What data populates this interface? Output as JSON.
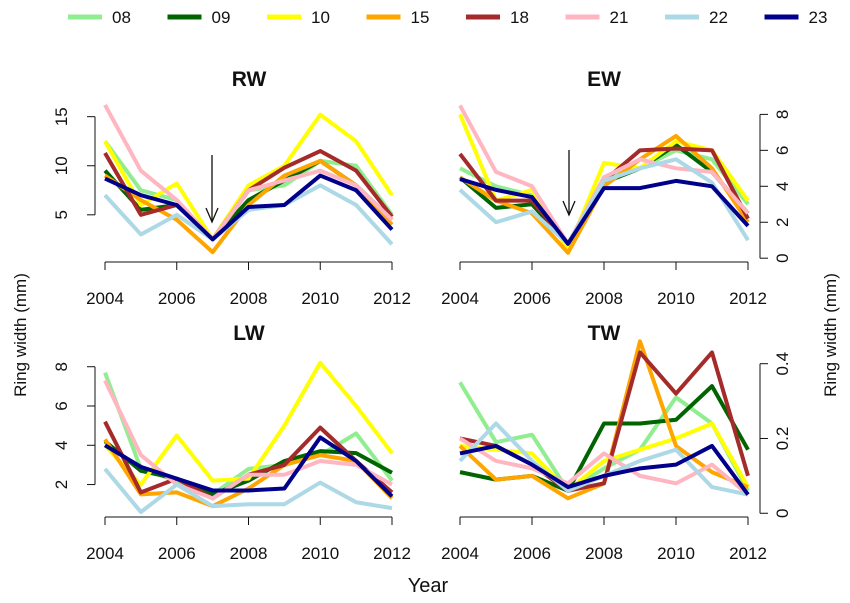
{
  "legend": [
    {
      "name": "08",
      "color": "#90ee90"
    },
    {
      "name": "09",
      "color": "#006400"
    },
    {
      "name": "10",
      "color": "#ffff00"
    },
    {
      "name": "15",
      "color": "#ffa500"
    },
    {
      "name": "18",
      "color": "#a52a2a"
    },
    {
      "name": "21",
      "color": "#ffb6c1"
    },
    {
      "name": "22",
      "color": "#add8e6"
    },
    {
      "name": "23",
      "color": "#00008b"
    }
  ],
  "chart_data": [
    {
      "type": "line",
      "title": "RW",
      "x": [
        2004,
        2005,
        2006,
        2007,
        2008,
        2009,
        2010,
        2011,
        2012
      ],
      "xlim": [
        2004,
        2012
      ],
      "xticks": [
        2004,
        2006,
        2008,
        2010,
        2012
      ],
      "ylim": [
        0.6,
        16.7
      ],
      "yticks": [
        5,
        10,
        15
      ],
      "series": [
        {
          "values": [
            12.5,
            7.5,
            6.5,
            2.5,
            7.5,
            8,
            10.5,
            10,
            5
          ]
        },
        {
          "values": [
            9.5,
            5.5,
            6,
            2.5,
            6.5,
            8.5,
            10.5,
            8,
            4.5
          ]
        },
        {
          "values": [
            12.5,
            6,
            8.2,
            2.5,
            8,
            10,
            15.2,
            12.5,
            7
          ]
        },
        {
          "values": [
            9,
            6.5,
            4.5,
            1.2,
            6,
            9,
            10.5,
            8,
            4
          ]
        },
        {
          "values": [
            11.3,
            5,
            6,
            2.5,
            7.5,
            9.8,
            11.5,
            9.5,
            4.8
          ]
        },
        {
          "values": [
            16.2,
            9.5,
            6.5,
            2.5,
            7.5,
            8.5,
            9.5,
            8,
            4.5
          ]
        },
        {
          "values": [
            7,
            3,
            5,
            2.5,
            5.5,
            6,
            8,
            6,
            2
          ]
        },
        {
          "values": [
            8.7,
            7,
            6,
            2.5,
            5.8,
            6,
            9,
            7.5,
            3.5
          ]
        }
      ]
    },
    {
      "type": "line",
      "title": "EW",
      "x": [
        2004,
        2005,
        2006,
        2007,
        2008,
        2009,
        2010,
        2011,
        2012
      ],
      "xlim": [
        2004,
        2012
      ],
      "xticks": [
        2004,
        2006,
        2008,
        2010,
        2012
      ],
      "ylim": [
        -0.1,
        8.8
      ],
      "yticks": [
        0,
        2,
        4,
        6,
        8
      ],
      "series": [
        {
          "values": [
            5,
            4,
            3.5,
            0.8,
            4.5,
            5,
            6,
            5.5,
            3
          ]
        },
        {
          "values": [
            4.5,
            2.8,
            3,
            0.8,
            4.2,
            5,
            6.3,
            4.8,
            2.5
          ]
        },
        {
          "values": [
            8,
            3.2,
            3.8,
            0.5,
            5.3,
            5,
            6.5,
            6,
            3.2
          ]
        },
        {
          "values": [
            4.5,
            3.2,
            2.5,
            0.3,
            4,
            5.5,
            6.8,
            5,
            2
          ]
        },
        {
          "values": [
            5.8,
            3.2,
            3.2,
            0.8,
            4.3,
            6,
            6.1,
            6,
            2.2
          ]
        },
        {
          "values": [
            8.5,
            4.8,
            4,
            0.8,
            4.5,
            5.5,
            5,
            4.8,
            2.5
          ]
        },
        {
          "values": [
            3.8,
            2,
            2.6,
            0.8,
            4.3,
            5,
            5.5,
            4.2,
            1
          ]
        },
        {
          "values": [
            4.4,
            3.8,
            3.4,
            0.8,
            3.9,
            3.9,
            4.3,
            4,
            1.8
          ]
        }
      ]
    },
    {
      "type": "line",
      "title": "LW",
      "ylabel": "Ring width (mm)",
      "xlabel": "Year",
      "x": [
        2004,
        2005,
        2006,
        2007,
        2008,
        2009,
        2010,
        2011,
        2012
      ],
      "xlim": [
        2004,
        2012
      ],
      "xticks": [
        2004,
        2006,
        2008,
        2010,
        2012
      ],
      "ylim": [
        0.45,
        8.75
      ],
      "yticks": [
        2,
        4,
        6,
        8
      ],
      "series": [
        {
          "values": [
            7.7,
            2.8,
            2.2,
            1.5,
            2.8,
            3,
            3.5,
            4.6,
            2.2
          ]
        },
        {
          "values": [
            4.2,
            2.7,
            2.3,
            1.5,
            2.2,
            3.2,
            3.7,
            3.6,
            2.6
          ]
        },
        {
          "values": [
            4,
            2,
            4.5,
            2.2,
            2.3,
            5,
            8.2,
            6,
            3.6
          ]
        },
        {
          "values": [
            4.3,
            1.5,
            1.6,
            0.9,
            1.8,
            3,
            3.5,
            3.2,
            1.3
          ]
        },
        {
          "values": [
            5.2,
            1.6,
            2.3,
            1.3,
            2.5,
            3,
            4.9,
            3.2,
            1.6
          ]
        },
        {
          "values": [
            7.3,
            3.5,
            2,
            1.3,
            2.5,
            2.5,
            3.2,
            3,
            2
          ]
        },
        {
          "values": [
            2.8,
            0.6,
            2,
            0.9,
            1,
            1,
            2.1,
            1.1,
            0.8
          ]
        },
        {
          "values": [
            4,
            2.9,
            2.3,
            1.7,
            1.7,
            1.8,
            4.4,
            3.2,
            1.4
          ]
        }
      ]
    },
    {
      "type": "line",
      "title": "TW",
      "ylabel": "Ring width (mm)",
      "x": [
        2004,
        2005,
        2006,
        2007,
        2008,
        2009,
        2010,
        2011,
        2012
      ],
      "xlim": [
        2004,
        2012
      ],
      "xticks": [
        2004,
        2006,
        2008,
        2010,
        2012
      ],
      "ylim": [
        -0.01,
        0.45
      ],
      "yticks": [
        0,
        0.2,
        0.4
      ],
      "series": [
        {
          "values": [
            0.35,
            0.19,
            0.21,
            0.06,
            0.12,
            0.17,
            0.31,
            0.24,
            0.06
          ]
        },
        {
          "values": [
            0.11,
            0.09,
            0.1,
            0.06,
            0.24,
            0.24,
            0.25,
            0.34,
            0.17
          ]
        },
        {
          "values": [
            0.18,
            0.17,
            0.16,
            0.06,
            0.14,
            0.17,
            0.2,
            0.24,
            0.07
          ]
        },
        {
          "values": [
            0.18,
            0.09,
            0.1,
            0.04,
            0.08,
            0.46,
            0.18,
            0.11,
            0.07
          ]
        },
        {
          "values": [
            0.2,
            0.18,
            0.13,
            0.06,
            0.08,
            0.43,
            0.32,
            0.43,
            0.1
          ]
        },
        {
          "values": [
            0.2,
            0.14,
            0.12,
            0.08,
            0.16,
            0.1,
            0.08,
            0.13,
            0.05
          ]
        },
        {
          "values": [
            0.14,
            0.24,
            0.14,
            0.06,
            0.1,
            0.14,
            0.17,
            0.07,
            0.05
          ]
        },
        {
          "values": [
            0.16,
            0.18,
            0.13,
            0.07,
            0.1,
            0.12,
            0.13,
            0.18,
            0.05
          ]
        }
      ]
    }
  ]
}
